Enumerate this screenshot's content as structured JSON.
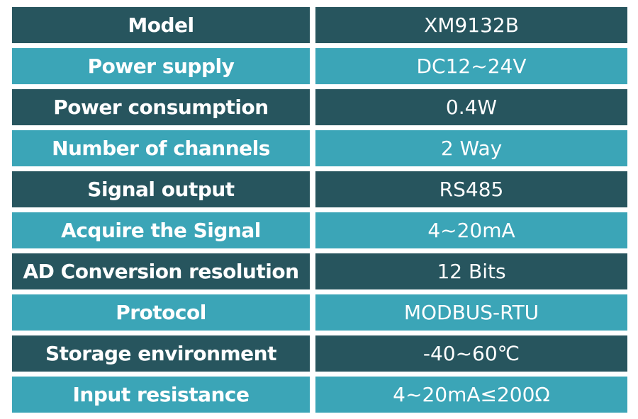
{
  "colors": {
    "dark_row": "#27555e",
    "light_row": "#3ba5b7",
    "text": "#ffffff"
  },
  "specs": [
    {
      "label": "Model",
      "value": "XM9132B"
    },
    {
      "label": "Power supply",
      "value": "DC12~24V"
    },
    {
      "label": "Power consumption",
      "value": "0.4W"
    },
    {
      "label": "Number of channels",
      "value": "2 Way"
    },
    {
      "label": "Signal output",
      "value": "RS485"
    },
    {
      "label": "Acquire the Signal",
      "value": "4~20mA"
    },
    {
      "label": "AD Conversion resolution",
      "value": "12 Bits"
    },
    {
      "label": "Protocol",
      "value": "MODBUS-RTU"
    },
    {
      "label": "Storage environment",
      "value": "-40~60℃"
    },
    {
      "label": "Input resistance",
      "value": "4~20mA≤200Ω"
    }
  ]
}
